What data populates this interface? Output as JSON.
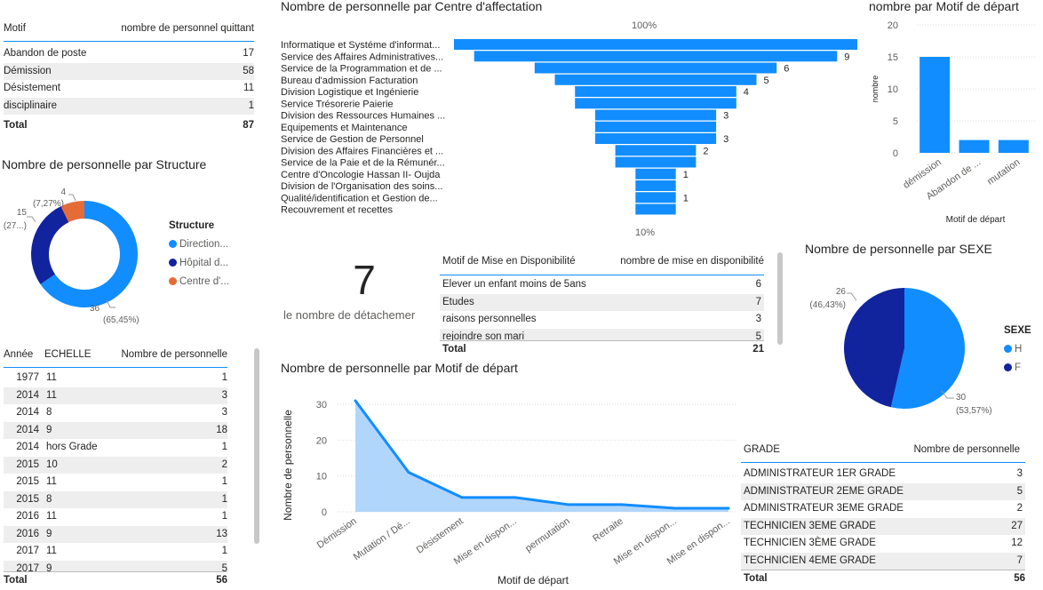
{
  "colors": {
    "blue": "#118dff",
    "dark": "#12239e",
    "orange": "#e66c37",
    "area": "#a9d2fb",
    "grid": "#dddddd"
  },
  "t_motif": {
    "h1": "Motif",
    "h2": "nombre de personnel quittant",
    "rows": [
      {
        "label": "Abandon de poste",
        "value": "17"
      },
      {
        "label": "Démission",
        "value": "58"
      },
      {
        "label": "Désistement",
        "value": "11"
      },
      {
        "label": "disciplinaire",
        "value": "1"
      }
    ],
    "total_label": "Total",
    "total_value": "87"
  },
  "donut": {
    "title": "Nombre de personnelle par Structure",
    "legend_title": "Structure",
    "legend": [
      {
        "label": "Direction...",
        "color": "#118dff"
      },
      {
        "label": "Hôpital d...",
        "color": "#12239e"
      },
      {
        "label": "Centre d'...",
        "color": "#e66c37"
      }
    ],
    "lbl_orange_n": "4",
    "lbl_orange_p": "(7,27%)",
    "lbl_dark_n": "15",
    "lbl_dark_p": "(27...)",
    "lbl_blue_n": "36",
    "lbl_blue_p": "(65,45%)"
  },
  "t_echelle": {
    "h_annee": "Année",
    "h_echelle": "ECHELLE",
    "h_nb": "Nombre de personnelle",
    "rows": [
      {
        "annee": "1977",
        "echelle": "11",
        "nb": "1"
      },
      {
        "annee": "2014",
        "echelle": "11",
        "nb": "3"
      },
      {
        "annee": "2014",
        "echelle": "8",
        "nb": "3"
      },
      {
        "annee": "2014",
        "echelle": "9",
        "nb": "18"
      },
      {
        "annee": "2014",
        "echelle": "hors Grade",
        "nb": "1"
      },
      {
        "annee": "2015",
        "echelle": "10",
        "nb": "2"
      },
      {
        "annee": "2015",
        "echelle": "11",
        "nb": "1"
      },
      {
        "annee": "2015",
        "echelle": "8",
        "nb": "1"
      },
      {
        "annee": "2016",
        "echelle": "11",
        "nb": "1"
      },
      {
        "annee": "2016",
        "echelle": "9",
        "nb": "13"
      },
      {
        "annee": "2017",
        "echelle": "11",
        "nb": "1"
      },
      {
        "annee": "2017",
        "echelle": "9",
        "nb": "5"
      }
    ],
    "total_label": "Total",
    "total_value": "56"
  },
  "funnel": {
    "title": "Nombre de personnelle par Centre d'affectation",
    "top_label": "100%",
    "bottom_label": "10%"
  },
  "kpi": {
    "value": "7",
    "label": "le nombre de détachemer"
  },
  "t_dispo": {
    "h1": "Motif de Mise en Disponibilité",
    "h2": "nombre de mise en disponibilité",
    "rows": [
      {
        "label": "Elever un enfant moins de 5ans",
        "value": "6"
      },
      {
        "label": "Etudes",
        "value": "7"
      },
      {
        "label": "raisons personnelles",
        "value": "3"
      },
      {
        "label": "rejoindre son mari",
        "value": "5"
      }
    ],
    "total_label": "Total",
    "total_value": "21"
  },
  "bar_motif": {
    "title": "nombre par Motif de départ",
    "ylabel": "nombre",
    "xlabel": "Motif de départ"
  },
  "pie_sexe": {
    "title": "Nombre de personnelle par SEXE",
    "legend_title": "SEXE",
    "legend": [
      {
        "label": "H",
        "color": "#118dff"
      },
      {
        "label": "F",
        "color": "#12239e"
      }
    ],
    "lbl_f_n": "26",
    "lbl_f_p": "(46,43%)",
    "lbl_h_n": "30",
    "lbl_h_p": "(53,57%)"
  },
  "area": {
    "title": "Nombre de personnelle par Motif de départ",
    "ylabel": "Nombre de personnelle",
    "xlabel": "Motif de départ"
  },
  "t_grade": {
    "h1": "GRADE",
    "h2": "Nombre de personnelle",
    "rows": [
      {
        "label": "ADMINISTRATEUR 1ER GRADE",
        "value": "3"
      },
      {
        "label": "ADMINISTRATEUR 2EME GRADE",
        "value": "5"
      },
      {
        "label": "ADMINISTRATEUR 3EME GRADE",
        "value": "2"
      },
      {
        "label": "TECHNICIEN 3EME GRADE",
        "value": "27"
      },
      {
        "label": "TECHNICIEN 3ÈME GRADE",
        "value": "12"
      },
      {
        "label": "TECHNICIEN 4EME GRADE",
        "value": "7"
      }
    ],
    "total_label": "Total",
    "total_value": "56"
  },
  "chart_data": [
    {
      "type": "bar",
      "title": "Nombre de personnelle par Centre d'affectation",
      "orientation": "horizontal-funnel",
      "categories": [
        "Informatique et Systéme d'informat...",
        "Service des Affaires Administratives...",
        "Service de la Programmation et de ...",
        "Bureau d'admission Facturation",
        "Division Logistique et Ingénierie",
        "Service Trésorerie Paierie",
        "Division des Ressources Humaines ...",
        "Equipements et Maintenance",
        "Service de Gestion de Personnel",
        "Division des Affaires Financières et ...",
        "Service de la Paie et de la Rémunér...",
        "Centre d'Oncologie Hassan II- Oujda",
        "Division de l'Organisation des soins...",
        "Qualité/identification et Gestion de...",
        "Recouvrement et recettes"
      ],
      "values": [
        10,
        9,
        6,
        5,
        4,
        4,
        3,
        3,
        3,
        2,
        2,
        1,
        1,
        1,
        1
      ],
      "labels": [
        "",
        "9",
        "6",
        "5",
        "4",
        "",
        "3",
        "",
        "3",
        "2",
        "",
        "1",
        "",
        "1",
        ""
      ]
    },
    {
      "type": "bar",
      "title": "nombre par Motif de départ",
      "categories": [
        "démission",
        "Abandon de ...",
        "mutation"
      ],
      "values": [
        15,
        2,
        2
      ],
      "ylim": [
        0,
        20
      ],
      "yticks": [
        0,
        5,
        10,
        15,
        20
      ],
      "xlabel": "Motif de départ",
      "ylabel": "nombre"
    },
    {
      "type": "area",
      "title": "Nombre de personnelle par Motif de départ",
      "categories": [
        "Démission",
        "Mutation / Dé...",
        "Désistement",
        "Mise en dispon...",
        "permutation",
        "Retraite",
        "Mise en dispon...",
        "Mise en dispon..."
      ],
      "values": [
        31,
        11,
        4,
        4,
        2,
        2,
        1,
        1
      ],
      "ylim": [
        0,
        30
      ],
      "yticks": [
        0,
        10,
        20,
        30
      ],
      "xlabel": "Motif de départ",
      "ylabel": "Nombre de personnelle"
    },
    {
      "type": "pie",
      "title": "Nombre de personnelle par Structure",
      "donut": true,
      "categories": [
        "Direction...",
        "Hôpital d...",
        "Centre d'..."
      ],
      "values": [
        36,
        15,
        4
      ]
    },
    {
      "type": "pie",
      "title": "Nombre de personnelle par SEXE",
      "categories": [
        "H",
        "F"
      ],
      "values": [
        30,
        26
      ]
    }
  ]
}
